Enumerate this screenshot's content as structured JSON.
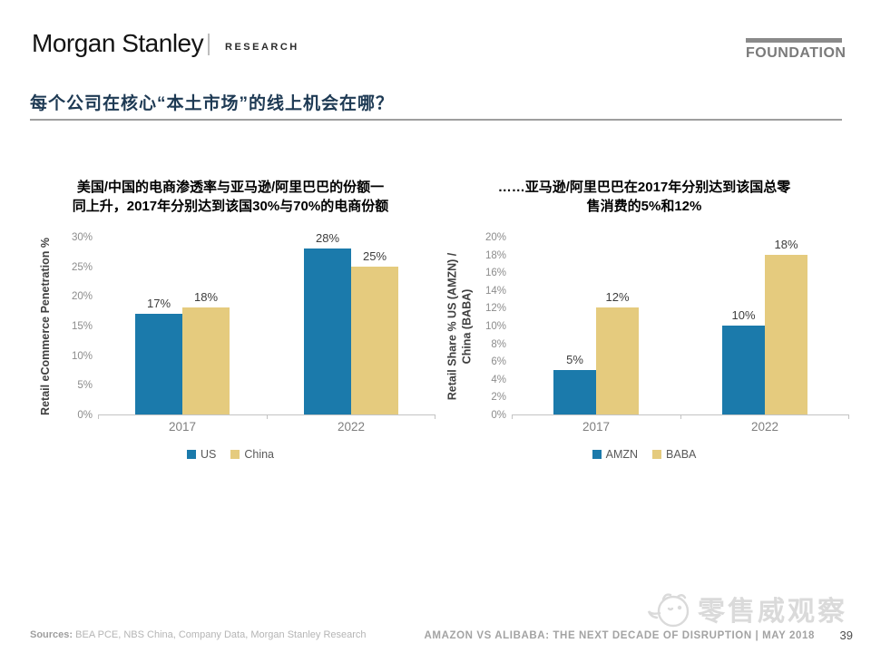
{
  "header": {
    "brand": "Morgan Stanley",
    "division": "RESEARCH",
    "foundation_label": "FOUNDATION"
  },
  "title": "每个公司在核心“本土市场”的线上机会在哪？",
  "chart_data": [
    {
      "type": "bar",
      "title": "美国/中国的电商渗透率与亚马逊/阿里巴巴的份额一\n同上升，2017年分别达到该国30%与70%的电商份额",
      "categories": [
        "2017",
        "2022"
      ],
      "series": [
        {
          "name": "US",
          "color": "#1b7aab",
          "values": [
            17,
            28
          ],
          "labels": [
            "17%",
            "28%"
          ]
        },
        {
          "name": "China",
          "color": "#e5cb7e",
          "values": [
            18,
            25
          ],
          "labels": [
            "18%",
            "25%"
          ]
        }
      ],
      "ylabel": "Retail eCommerce Penetration %",
      "ylim": [
        0,
        30
      ],
      "ytick_step": 5,
      "grid": false,
      "legend_position": "bottom"
    },
    {
      "type": "bar",
      "title": "……亚马逊/阿里巴巴在2017年分别达到该国总零\n售消费的5%和12%",
      "categories": [
        "2017",
        "2022"
      ],
      "series": [
        {
          "name": "AMZN",
          "color": "#1b7aab",
          "values": [
            5,
            10
          ],
          "labels": [
            "5%",
            "10%"
          ]
        },
        {
          "name": "BABA",
          "color": "#e5cb7e",
          "values": [
            12,
            18
          ],
          "labels": [
            "12%",
            "18%"
          ]
        }
      ],
      "ylabel": "Retail Share % US (AMZN) /\nChina (BABA)",
      "ylim": [
        0,
        20
      ],
      "ytick_step": 2,
      "grid": false,
      "legend_position": "bottom"
    }
  ],
  "watermark": "零售威观察",
  "footer": {
    "sources_label": "Sources:",
    "sources": "BEA PCE, NBS China, Company Data, Morgan Stanley Research",
    "report_title": "AMAZON VS ALIBABA: THE NEXT DECADE OF DISRUPTION | MAY 2018",
    "page_number": "39"
  },
  "colors": {
    "series_blue": "#1b7aab",
    "series_tan": "#e5cb7e",
    "title_navy": "#1e3a54",
    "axis_gray": "#c3c3c3"
  }
}
